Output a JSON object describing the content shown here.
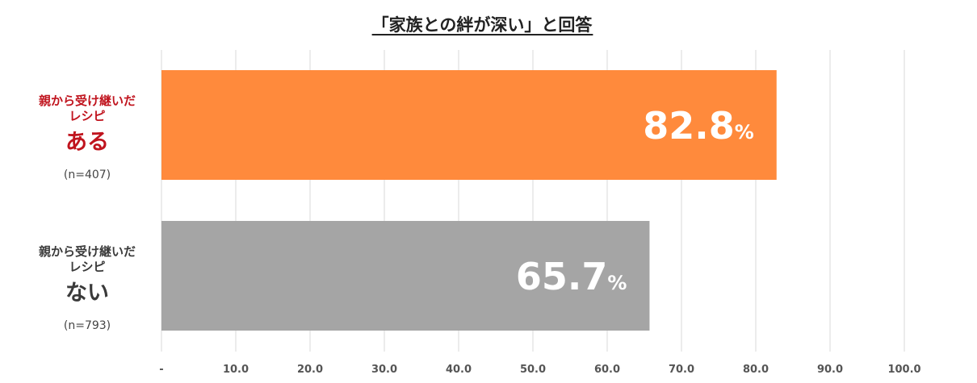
{
  "chart_data": {
    "type": "bar",
    "orientation": "horizontal",
    "title": "「家族との絆が深い」と回答",
    "xlim": [
      0,
      100
    ],
    "ticks": [
      "-",
      "10.0",
      "20.0",
      "30.0",
      "40.0",
      "50.0",
      "60.0",
      "70.0",
      "80.0",
      "90.0",
      "100.0"
    ],
    "grid": true,
    "categories": [
      {
        "line1": "親から受け継いだ",
        "line2": "レシピ",
        "emphasis": "ある",
        "n_label": "(n=407)",
        "value": 82.8,
        "value_text": "82.8",
        "unit": "%",
        "color": "#ff8a3c",
        "label_color": "#c0141e"
      },
      {
        "line1": "親から受け継いだ",
        "line2": "レシピ",
        "emphasis": "ない",
        "n_label": "(n=793)",
        "value": 65.7,
        "value_text": "65.7",
        "unit": "%",
        "color": "#a5a5a5",
        "label_color": "#3a3a3a"
      }
    ]
  }
}
